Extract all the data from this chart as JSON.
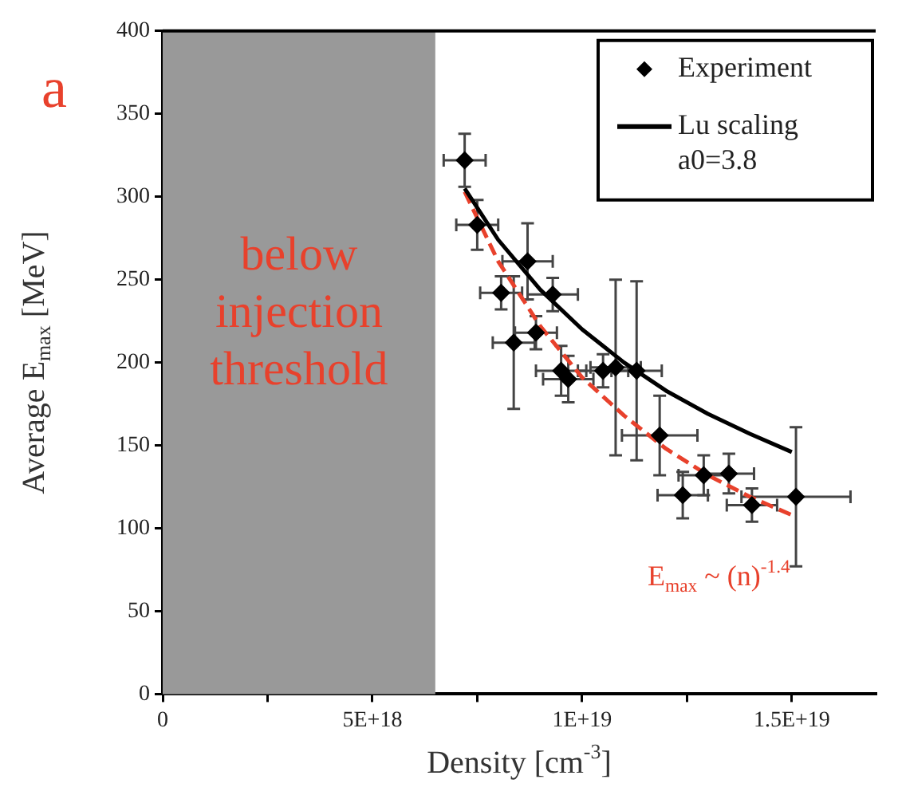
{
  "chart_data": {
    "type": "scatter",
    "xlabel": "Density [cm$^{-3}$]",
    "ylabel": "Average E$_{max}$ [MeV]",
    "xlim": [
      0,
      1.7e+19
    ],
    "ylim": [
      0,
      400
    ],
    "xticks": [
      0,
      {
        "value": 2.5e+18,
        "label": null
      },
      {
        "value": 5e+18,
        "label": "5E+18"
      },
      {
        "value": 7.5e+18,
        "label": null
      },
      {
        "value": 1e+19,
        "label": "1E+19"
      },
      {
        "value": 1.25e+19,
        "label": null
      },
      {
        "value": 1.5e+19,
        "label": "1.5E+19"
      }
    ],
    "yticks": [
      0,
      50,
      100,
      150,
      200,
      250,
      300,
      350,
      400
    ],
    "grid": false,
    "legend": "top right",
    "bands": [
      {
        "axis": "x",
        "from": 0,
        "to": 6.5e+18,
        "label": "below injection threshold",
        "color": "#999999"
      }
    ],
    "annotations": [
      "a",
      "E$_{max}$ ~ (n)$^{-1.4}$"
    ],
    "series": [
      {
        "name": "Experiment",
        "marker": "diamond",
        "color": "#000000",
        "x": [
          7.2e+18,
          7.5e+18,
          8.7e+18,
          8.07e+18,
          9.3e+18,
          8.37e+18,
          8.9e+18,
          9.5e+18,
          9.67e+18,
          1.05e+19,
          1.08e+19,
          1.13e+19,
          1.185e+19,
          1.24e+19,
          1.29e+19,
          1.35e+19,
          1.405e+19,
          1.51e+19
        ],
        "values": [
          322,
          283,
          261,
          242,
          241,
          212,
          218,
          195,
          190,
          195,
          197,
          195,
          156,
          120,
          132,
          133,
          114,
          119
        ],
        "errors": [
          16,
          15,
          23,
          10,
          10,
          40,
          10,
          15,
          14,
          10,
          53,
          54,
          24,
          14,
          12,
          12,
          10,
          42
        ],
        "xerrors": [
          5e+17,
          5e+17,
          6e+17,
          5e+17,
          6e+17,
          5e+17,
          5e+17,
          6e+17,
          6e+17,
          6e+17,
          6e+17,
          6e+17,
          9e+17,
          6e+17,
          6e+17,
          6e+17,
          6e+17,
          1.3e+18
        ]
      },
      {
        "name": "Lu scaling a0=3.8",
        "type": "line",
        "marker": "none",
        "line_style": "solid",
        "color": "#000000",
        "x": [
          7.2e+18,
          8e+18,
          9e+18,
          1e+19,
          1.1e+19,
          1.2e+19,
          1.3e+19,
          1.4e+19,
          1.5e+19
        ],
        "values": [
          305,
          274,
          244,
          220,
          200,
          183,
          169,
          157,
          146
        ]
      },
      {
        "type": "line",
        "marker": "none",
        "line_style": "dashed",
        "color": "#e8412c",
        "x": [
          7.2e+18,
          8e+18,
          9e+18,
          1e+19,
          1.1e+19,
          1.2e+19,
          1.3e+19,
          1.4e+19,
          1.5e+19
        ],
        "values": [
          303,
          261,
          222,
          191,
          168,
          148,
          132,
          119,
          108
        ]
      }
    ]
  }
}
